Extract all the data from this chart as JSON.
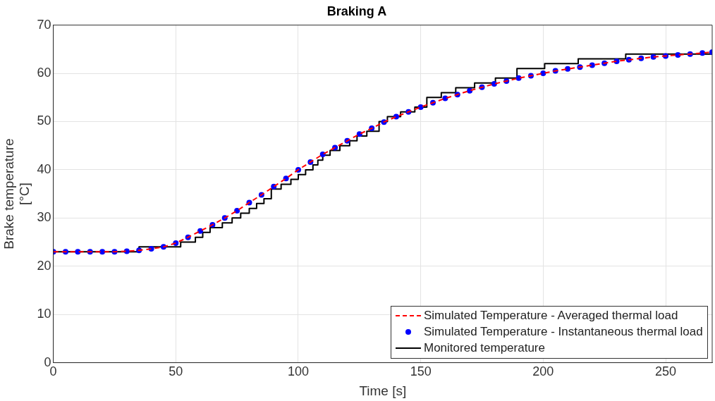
{
  "chart_data": {
    "type": "line",
    "title": "Braking A",
    "xlabel": "Time [s]",
    "ylabel": "Brake temperature\n[°C]",
    "xlim": [
      0,
      269
    ],
    "xticks": [
      0,
      50,
      100,
      150,
      200,
      250
    ],
    "ylim": [
      0,
      70
    ],
    "yticks": [
      0,
      10,
      20,
      30,
      40,
      50,
      60,
      70
    ],
    "grid": true,
    "legend": "bottom right",
    "series": [
      {
        "name": "Simulated Temperature - Averaged thermal load",
        "type": "line",
        "color": "#ff0000",
        "line_style": "dashed",
        "marker": "none",
        "x": [
          0,
          5,
          10,
          15,
          20,
          25,
          30,
          35,
          40,
          45,
          50,
          55,
          60,
          65,
          70,
          75,
          80,
          85,
          90,
          95,
          100,
          105,
          110,
          115,
          120,
          125,
          130,
          135,
          140,
          145,
          150,
          155,
          160,
          165,
          170,
          175,
          180,
          185,
          190,
          195,
          200,
          205,
          210,
          215,
          220,
          225,
          230,
          235,
          240,
          245,
          250,
          255,
          260,
          265,
          269
        ],
        "values": [
          23,
          23,
          23,
          23,
          23,
          23,
          23.1,
          23.3,
          23.6,
          24,
          24.8,
          26,
          27.3,
          28.6,
          30,
          31.5,
          33.2,
          34.8,
          36.5,
          38.2,
          40,
          41.6,
          43.2,
          44.6,
          46,
          47.4,
          48.6,
          49.9,
          51,
          52,
          53,
          53.9,
          54.8,
          55.6,
          56.4,
          57.1,
          57.8,
          58.4,
          59,
          59.5,
          60,
          60.5,
          60.9,
          61.3,
          61.7,
          62.1,
          62.5,
          62.8,
          63.1,
          63.4,
          63.6,
          63.8,
          64,
          64.2,
          64.4
        ]
      },
      {
        "name": "Simulated Temperature - Instantaneous thermal load",
        "type": "scatter",
        "color": "#0000ff",
        "marker": "circle",
        "x": [
          0,
          5,
          10,
          15,
          20,
          25,
          30,
          35,
          40,
          45,
          50,
          55,
          60,
          65,
          70,
          75,
          80,
          85,
          90,
          95,
          100,
          105,
          110,
          115,
          120,
          125,
          130,
          135,
          140,
          145,
          150,
          155,
          160,
          165,
          170,
          175,
          180,
          185,
          190,
          195,
          200,
          205,
          210,
          215,
          220,
          225,
          230,
          235,
          240,
          245,
          250,
          255,
          260,
          265,
          269
        ],
        "values": [
          23,
          23,
          23,
          23,
          23,
          23,
          23.1,
          23.3,
          23.6,
          24,
          24.8,
          26,
          27.3,
          28.6,
          30,
          31.5,
          33.2,
          34.8,
          36.5,
          38.2,
          40,
          41.6,
          43.2,
          44.6,
          46,
          47.4,
          48.6,
          49.9,
          51,
          52,
          53,
          53.9,
          54.8,
          55.6,
          56.4,
          57.1,
          57.8,
          58.4,
          59,
          59.5,
          60,
          60.5,
          60.9,
          61.3,
          61.7,
          62.1,
          62.5,
          62.8,
          63.1,
          63.4,
          63.6,
          63.8,
          64,
          64.2,
          64.4
        ]
      },
      {
        "name": "Monitored temperature",
        "type": "step",
        "color": "#000000",
        "line_style": "solid",
        "marker": "none",
        "x": [
          0,
          35,
          52,
          58,
          61,
          64,
          69,
          73,
          76.5,
          80,
          83,
          86,
          89,
          93,
          97,
          100,
          103,
          106,
          108,
          110,
          113,
          117,
          121,
          124,
          128,
          133,
          136.4,
          141.8,
          147.6,
          152.5,
          158.4,
          164.3,
          172,
          180.5,
          189.3,
          200.6,
          214.3,
          233.7,
          269
        ],
        "values": [
          23,
          24,
          25,
          26,
          27,
          28,
          29,
          30,
          31,
          32,
          33,
          34,
          36,
          37,
          38,
          39,
          40,
          41,
          42,
          43,
          44,
          45,
          46,
          47,
          48,
          50,
          51,
          52,
          53,
          55,
          56,
          57,
          58,
          59,
          61,
          62,
          63,
          64,
          64
        ]
      }
    ]
  }
}
